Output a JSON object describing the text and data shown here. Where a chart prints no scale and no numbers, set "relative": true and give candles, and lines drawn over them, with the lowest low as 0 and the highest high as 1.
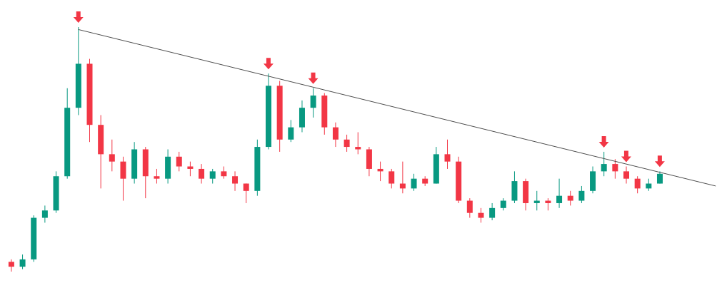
{
  "chart_data": {
    "type": "candlestick",
    "relative": true,
    "categories": [
      null,
      null,
      null,
      null,
      null,
      null,
      null,
      null,
      null,
      null,
      null,
      null,
      null,
      null,
      null,
      null,
      null,
      null,
      null,
      null,
      null,
      null,
      null,
      null,
      null,
      null,
      null,
      null,
      null,
      null,
      null,
      null,
      null,
      null,
      null,
      null,
      null,
      null,
      null,
      null,
      null,
      null,
      null,
      null,
      null,
      null,
      null,
      null,
      null,
      null,
      null,
      null,
      null,
      null,
      null,
      null,
      null,
      null,
      null,
      null,
      null,
      null,
      null,
      null
    ],
    "ohlc": [
      [
        0.04,
        0.05,
        0,
        0.02
      ],
      [
        0.02,
        0.07,
        0.01,
        0.05
      ],
      [
        0.05,
        0.23,
        0.04,
        0.22
      ],
      [
        0.22,
        0.27,
        0.2,
        0.25
      ],
      [
        0.25,
        0.41,
        0.24,
        0.39
      ],
      [
        0.39,
        0.75,
        0.38,
        0.67
      ],
      [
        0.67,
        1,
        0.64,
        0.85
      ],
      [
        0.85,
        0.87,
        0.53,
        0.6
      ],
      [
        0.6,
        0.64,
        0.34,
        0.48
      ],
      [
        0.48,
        0.54,
        0.41,
        0.45
      ],
      [
        0.45,
        0.47,
        0.29,
        0.38
      ],
      [
        0.38,
        0.53,
        0.36,
        0.5
      ],
      [
        0.5,
        0.51,
        0.3,
        0.39
      ],
      [
        0.39,
        0.42,
        0.36,
        0.38
      ],
      [
        0.38,
        0.5,
        0.36,
        0.47
      ],
      [
        0.47,
        0.49,
        0.41,
        0.43
      ],
      [
        0.43,
        0.45,
        0.39,
        0.42
      ],
      [
        0.42,
        0.44,
        0.36,
        0.38
      ],
      [
        0.38,
        0.42,
        0.36,
        0.41
      ],
      [
        0.41,
        0.43,
        0.38,
        0.39
      ],
      [
        0.39,
        0.41,
        0.33,
        0.36
      ],
      [
        0.36,
        0.36,
        0.28,
        0.33
      ],
      [
        0.33,
        0.54,
        0.31,
        0.51
      ],
      [
        0.51,
        0.81,
        0.5,
        0.76
      ],
      [
        0.76,
        0.78,
        0.49,
        0.54
      ],
      [
        0.54,
        0.62,
        0.53,
        0.59
      ],
      [
        0.59,
        0.7,
        0.57,
        0.67
      ],
      [
        0.67,
        0.75,
        0.63,
        0.72
      ],
      [
        0.72,
        0.73,
        0.56,
        0.59
      ],
      [
        0.59,
        0.61,
        0.51,
        0.54
      ],
      [
        0.54,
        0.56,
        0.49,
        0.51
      ],
      [
        0.51,
        0.57,
        0.48,
        0.5
      ],
      [
        0.5,
        0.51,
        0.39,
        0.42
      ],
      [
        0.42,
        0.45,
        0.37,
        0.41
      ],
      [
        0.41,
        0.42,
        0.34,
        0.36
      ],
      [
        0.36,
        0.45,
        0.32,
        0.34
      ],
      [
        0.34,
        0.4,
        0.33,
        0.38
      ],
      [
        0.38,
        0.39,
        0.35,
        0.36
      ],
      [
        0.36,
        0.51,
        0.36,
        0.48
      ],
      [
        0.48,
        0.54,
        0.42,
        0.45
      ],
      [
        0.45,
        0.47,
        0.28,
        0.29
      ],
      [
        0.29,
        0.3,
        0.22,
        0.24
      ],
      [
        0.24,
        0.26,
        0.2,
        0.22
      ],
      [
        0.22,
        0.28,
        0.21,
        0.26
      ],
      [
        0.26,
        0.3,
        0.25,
        0.29
      ],
      [
        0.29,
        0.41,
        0.28,
        0.37
      ],
      [
        0.37,
        0.38,
        0.25,
        0.28
      ],
      [
        0.28,
        0.33,
        0.25,
        0.29
      ],
      [
        0.29,
        0.3,
        0.25,
        0.28
      ],
      [
        0.28,
        0.38,
        0.26,
        0.31
      ],
      [
        0.31,
        0.33,
        0.27,
        0.29
      ],
      [
        0.29,
        0.35,
        0.28,
        0.33
      ],
      [
        0.33,
        0.43,
        0.32,
        0.41
      ],
      [
        0.41,
        0.49,
        0.39,
        0.44
      ],
      [
        0.44,
        0.46,
        0.38,
        0.41
      ],
      [
        0.41,
        0.43,
        0.36,
        0.38
      ],
      [
        0.38,
        0.39,
        0.32,
        0.34
      ],
      [
        0.34,
        0.38,
        0.33,
        0.36
      ],
      [
        0.36,
        0.41,
        0.36,
        0.4
      ],
      null,
      null,
      null,
      null,
      null
    ],
    "colors": [
      "#f23645",
      "#089981",
      "#089981",
      "#089981",
      "#089981",
      "#089981",
      "#089981",
      "#f23645",
      "#f23645",
      "#f23645",
      "#f23645",
      "#089981",
      "#f23645",
      "#f23645",
      "#089981",
      "#f23645",
      "#f23645",
      "#f23645",
      "#089981",
      "#f23645",
      "#f23645",
      "#f23645",
      "#089981",
      "#089981",
      "#f23645",
      "#089981",
      "#089981",
      "#089981",
      "#f23645",
      "#f23645",
      "#f23645",
      "#f23645",
      "#f23645",
      "#f23645",
      "#f23645",
      "#f23645",
      "#089981",
      "#f23645",
      "#089981",
      "#f23645",
      "#f23645",
      "#f23645",
      "#f23645",
      "#089981",
      "#089981",
      "#089981",
      "#f23645",
      "#089981",
      "#f23645",
      "#089981",
      "#f23645",
      "#089981",
      "#089981",
      "#089981",
      "#f23645",
      "#f23645",
      "#f23645",
      "#089981",
      "#089981",
      null,
      null,
      null,
      null,
      null
    ],
    "series": [
      {
        "type": "line",
        "color": "#4d4d4d",
        "values": [
          null,
          null,
          null,
          null,
          null,
          null,
          0.99,
          null,
          null,
          null,
          null,
          null,
          null,
          null,
          null,
          null,
          null,
          null,
          null,
          null,
          null,
          null,
          null,
          null,
          null,
          null,
          null,
          null,
          null,
          null,
          null,
          null,
          null,
          null,
          null,
          null,
          null,
          null,
          null,
          null,
          null,
          null,
          null,
          null,
          null,
          null,
          null,
          null,
          null,
          null,
          null,
          null,
          null,
          null,
          null,
          null,
          null,
          null,
          null,
          null,
          null,
          null,
          null,
          0.35
        ]
      }
    ]
  }
}
